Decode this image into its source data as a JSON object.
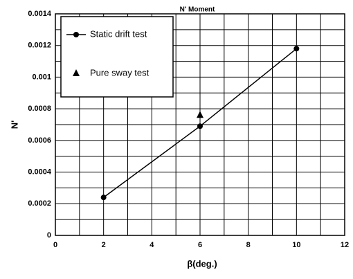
{
  "chart_data": {
    "type": "line",
    "title": "N' Moment",
    "xlabel": "β(deg.)",
    "ylabel": "N'",
    "xlim": [
      0,
      12
    ],
    "xticks": [
      0,
      2,
      4,
      6,
      8,
      10,
      12
    ],
    "ylim": [
      0,
      0.0014
    ],
    "yticks": [
      0,
      0.0002,
      0.0004,
      0.0006,
      0.0008,
      0.001,
      0.0012,
      0.0014
    ],
    "minor_xticks": [
      1,
      3,
      5,
      7,
      9,
      11
    ],
    "minor_yticks": [
      0.0001,
      0.0003,
      0.0005,
      0.0007,
      0.0009,
      0.0011,
      0.0013
    ],
    "grid": true,
    "legend": "upper left",
    "series": [
      {
        "name": "Static drift test",
        "color": "#000000",
        "marker": "circle",
        "line": true,
        "x": [
          2,
          6,
          10
        ],
        "values": [
          0.00024,
          0.00069,
          0.00118
        ]
      },
      {
        "name": "Pure sway test",
        "color": "#000000",
        "marker": "triangle",
        "line": false,
        "x": [
          6
        ],
        "values": [
          0.00076
        ]
      }
    ]
  }
}
